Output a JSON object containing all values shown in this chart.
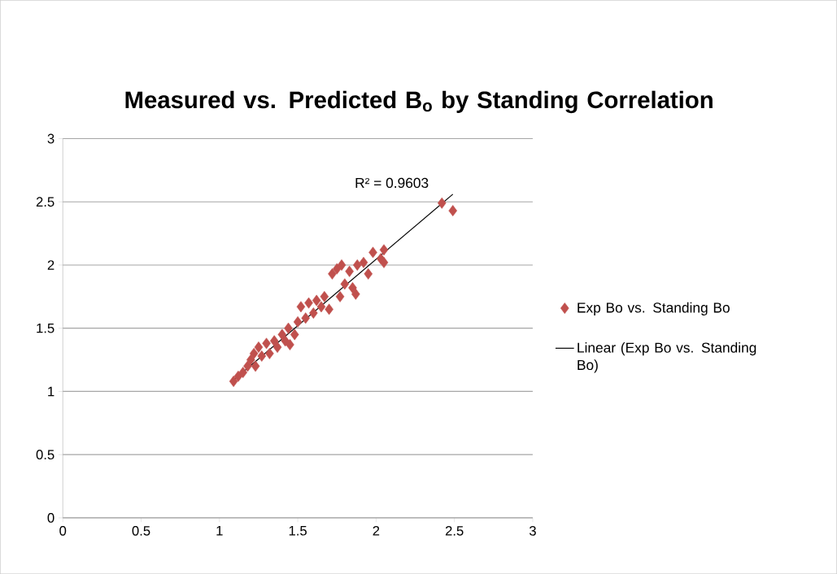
{
  "chart_data": {
    "type": "scatter",
    "title": "Measured vs. Predicted B$_{o}$ by Standing Correlation",
    "xlim": [
      0,
      3
    ],
    "ylim": [
      0,
      3
    ],
    "xticks": [
      0,
      0.5,
      1,
      1.5,
      2,
      2.5,
      3
    ],
    "yticks": [
      0,
      0.5,
      1,
      1.5,
      2,
      2.5,
      3
    ],
    "grid": "y",
    "legend": "right",
    "marker": "diamond",
    "annotations": [
      "R² = 0.9603"
    ],
    "series": [
      {
        "name": "Exp Bo vs. Standing Bo",
        "color": "#c0504d",
        "x": [
          1.09,
          1.12,
          1.15,
          1.18,
          1.2,
          1.22,
          1.23,
          1.25,
          1.27,
          1.3,
          1.32,
          1.35,
          1.37,
          1.4,
          1.42,
          1.44,
          1.45,
          1.48,
          1.5,
          1.52,
          1.55,
          1.57,
          1.6,
          1.62,
          1.65,
          1.67,
          1.7,
          1.72,
          1.75,
          1.77,
          1.78,
          1.8,
          1.83,
          1.85,
          1.87,
          1.88,
          1.92,
          1.95,
          1.98,
          2.03,
          2.05,
          2.05,
          2.42,
          2.49
        ],
        "values": [
          1.08,
          1.12,
          1.15,
          1.2,
          1.25,
          1.3,
          1.2,
          1.35,
          1.28,
          1.38,
          1.3,
          1.4,
          1.35,
          1.45,
          1.4,
          1.5,
          1.37,
          1.45,
          1.55,
          1.67,
          1.58,
          1.7,
          1.62,
          1.72,
          1.67,
          1.75,
          1.65,
          1.93,
          1.97,
          1.75,
          2.0,
          1.85,
          1.95,
          1.82,
          1.77,
          2.0,
          2.02,
          1.93,
          2.1,
          2.05,
          2.12,
          2.02,
          2.49,
          2.43
        ]
      },
      {
        "name": "Linear (Exp Bo vs. Standing Bo)",
        "type": "line",
        "color": "#000000",
        "marker": "none",
        "x": [
          1.09,
          2.49
        ],
        "values": [
          1.09,
          2.56
        ]
      }
    ]
  }
}
